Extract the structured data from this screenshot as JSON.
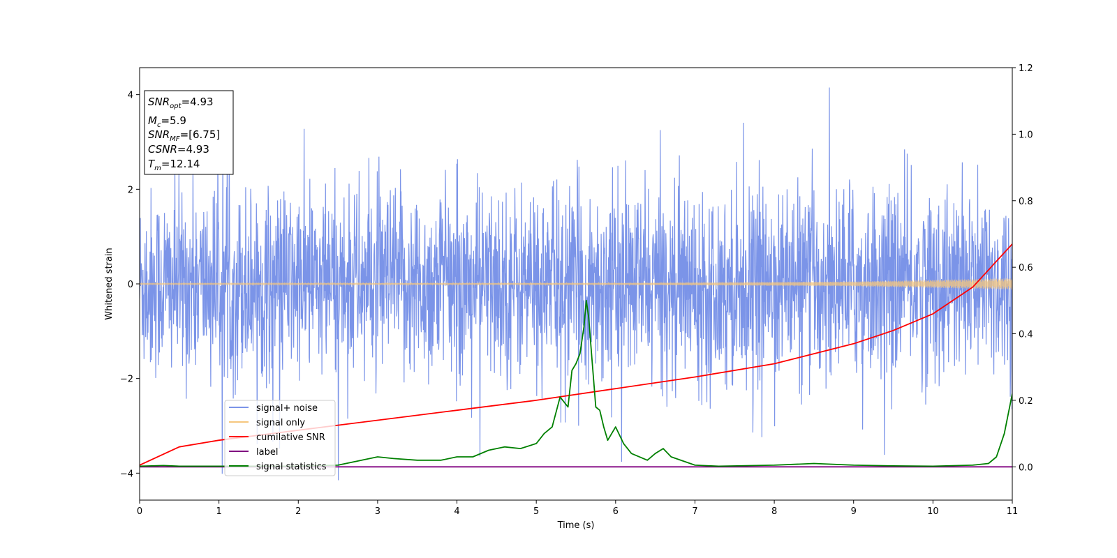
{
  "chart_data": {
    "type": "line",
    "xlabel": "Time (s)",
    "ylabel": "Whitened strain",
    "xlim": [
      0,
      11
    ],
    "ylim": [
      -4.57,
      4.57
    ],
    "y2lim": [
      -0.1,
      1.2
    ],
    "x_ticks": [
      "0",
      "1",
      "2",
      "3",
      "4",
      "5",
      "6",
      "7",
      "8",
      "9",
      "10",
      "11"
    ],
    "y_ticks": [
      "-4",
      "-2",
      "0",
      "2",
      "4"
    ],
    "y2_ticks": [
      "0.0",
      "0.2",
      "0.4",
      "0.6",
      "0.8",
      "1.0",
      "1.2"
    ],
    "annotation": {
      "snr_opt": {
        "main": "SNR",
        "sub": "opt",
        "value": "=4.93"
      },
      "mc": {
        "main": "M",
        "sub": "c",
        "value": "=5.9"
      },
      "snr_mf": {
        "main": "SNR",
        "sub": "MF",
        "value": "=[6.75]"
      },
      "csnr": {
        "main": "CSNR",
        "value": "=4.93"
      },
      "tm": {
        "main": "T",
        "sub": "m",
        "value": "=12.14"
      }
    },
    "legend_position": "lower-left",
    "series": [
      {
        "name": "signal+ noise",
        "axis": "left",
        "color": "#7b94e8",
        "envelope_approx": {
          "typical_amplitude": 1.8,
          "peak_max": 4.15,
          "peak_min": -4.15,
          "noise": "gaussian"
        }
      },
      {
        "name": "signal only",
        "axis": "left",
        "color": "#f5c77e",
        "amplitude_approx": [
          [
            0,
            0.01
          ],
          [
            6,
            0.02
          ],
          [
            9,
            0.05
          ],
          [
            11,
            0.12
          ]
        ]
      },
      {
        "name": "cumilative SNR",
        "axis": "right",
        "color": "#ff0000",
        "x": [
          0,
          0.5,
          1,
          2,
          3,
          4,
          5,
          6,
          7,
          8,
          9,
          9.5,
          10,
          10.5,
          11
        ],
        "y": [
          0.005,
          0.06,
          0.08,
          0.11,
          0.14,
          0.17,
          0.2,
          0.235,
          0.27,
          0.31,
          0.37,
          0.41,
          0.46,
          0.54,
          0.67
        ]
      },
      {
        "name": "label",
        "axis": "right",
        "color": "#800080",
        "x": [
          0,
          11
        ],
        "y": [
          0.0,
          0.0
        ]
      },
      {
        "name": "signal statistics",
        "axis": "right",
        "color": "#008000",
        "x": [
          0,
          0.3,
          0.5,
          1.0,
          1.5,
          2.0,
          2.5,
          2.8,
          3.0,
          3.2,
          3.5,
          3.8,
          4.0,
          4.2,
          4.4,
          4.6,
          4.8,
          5.0,
          5.1,
          5.2,
          5.3,
          5.4,
          5.45,
          5.5,
          5.55,
          5.6,
          5.63,
          5.66,
          5.7,
          5.75,
          5.8,
          5.85,
          5.9,
          6.0,
          6.1,
          6.2,
          6.4,
          6.5,
          6.6,
          6.7,
          7.0,
          7.3,
          8.0,
          8.5,
          9.0,
          9.5,
          10.0,
          10.5,
          10.7,
          10.8,
          10.9,
          11.0
        ],
        "y": [
          0.002,
          0.004,
          0.002,
          0.002,
          0.002,
          0.002,
          0.005,
          0.02,
          0.03,
          0.025,
          0.02,
          0.02,
          0.03,
          0.03,
          0.05,
          0.06,
          0.055,
          0.07,
          0.1,
          0.12,
          0.21,
          0.18,
          0.29,
          0.31,
          0.34,
          0.42,
          0.5,
          0.45,
          0.33,
          0.18,
          0.17,
          0.12,
          0.08,
          0.12,
          0.07,
          0.04,
          0.02,
          0.04,
          0.055,
          0.03,
          0.005,
          0.002,
          0.005,
          0.01,
          0.005,
          0.003,
          0.002,
          0.005,
          0.01,
          0.03,
          0.1,
          0.22
        ]
      }
    ]
  }
}
